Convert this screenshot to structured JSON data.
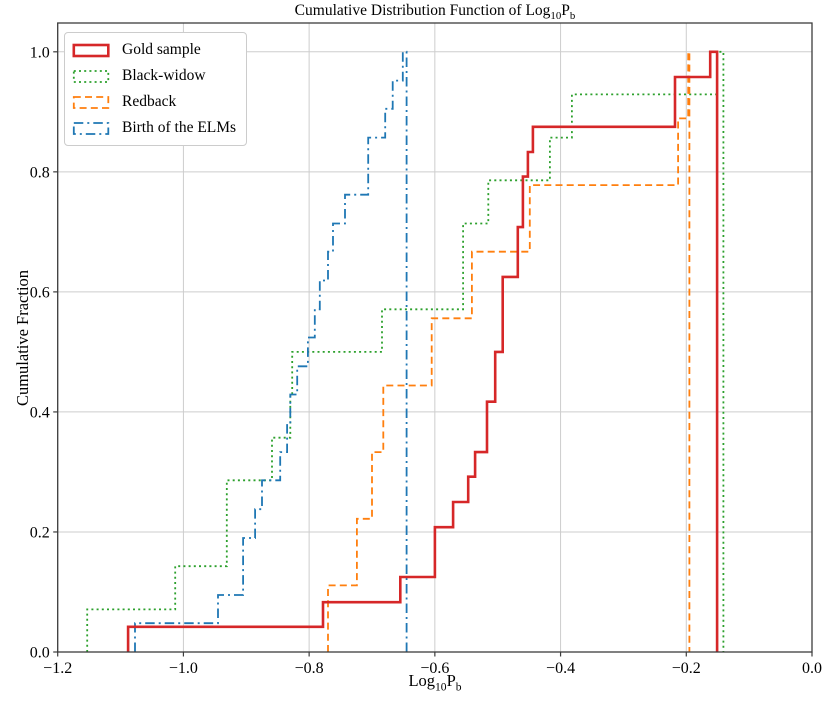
{
  "chart_data": {
    "type": "line",
    "subtype": "step-cdf",
    "title": {
      "prefix": "Cumulative Distribution Function of Log",
      "sub1": "10",
      "mid": "P",
      "sub2": "b"
    },
    "xlabel": {
      "prefix": "Log",
      "sub1": "10",
      "mid": "P",
      "sub2": "b"
    },
    "ylabel": "Cumulative Fraction",
    "xlim": [
      -1.2,
      0.0
    ],
    "ylim": [
      0,
      1.048
    ],
    "xticks": {
      "values": [
        -1.2,
        -1.0,
        -0.8,
        -0.6,
        -0.4,
        -0.2,
        0.0
      ],
      "labels": [
        "−1.2",
        "−1.0",
        "−0.8",
        "−0.6",
        "−0.4",
        "−0.2",
        "0.0"
      ]
    },
    "yticks": {
      "values": [
        0.0,
        0.2,
        0.4,
        0.6,
        0.8,
        1.0
      ],
      "labels": [
        "0.0",
        "0.2",
        "0.4",
        "0.6",
        "0.8",
        "1.0"
      ]
    },
    "grid": true,
    "grid_color": "#cdcdcd",
    "spine_color": "#3c3c3c",
    "legend_position": "upper left",
    "draw_order": [
      1,
      2,
      3,
      0
    ],
    "series": [
      {
        "name": "Gold sample",
        "color": "#d62728",
        "style": "solid",
        "linewidth": 2.6,
        "n": 24,
        "steps": [
          [
            -1.088,
            0.042
          ],
          [
            -0.778,
            0.083
          ],
          [
            -0.655,
            0.125
          ],
          [
            -0.6,
            0.208
          ],
          [
            -0.571,
            0.25
          ],
          [
            -0.547,
            0.292
          ],
          [
            -0.536,
            0.333
          ],
          [
            -0.517,
            0.417
          ],
          [
            -0.504,
            0.5
          ],
          [
            -0.492,
            0.625
          ],
          [
            -0.468,
            0.708
          ],
          [
            -0.46,
            0.792
          ],
          [
            -0.452,
            0.833
          ],
          [
            -0.444,
            0.875
          ],
          [
            -0.218,
            0.958
          ],
          [
            -0.162,
            1.0
          ]
        ],
        "close_x": -0.151
      },
      {
        "name": "Black-widow",
        "color": "#2ca02c",
        "style": "dotted",
        "linewidth": 1.8,
        "n": 14,
        "steps": [
          [
            -1.153,
            0.071
          ],
          [
            -1.013,
            0.143
          ],
          [
            -0.931,
            0.286
          ],
          [
            -0.859,
            0.357
          ],
          [
            -0.83,
            0.429
          ],
          [
            -0.827,
            0.5
          ],
          [
            -0.684,
            0.571
          ],
          [
            -0.555,
            0.714
          ],
          [
            -0.515,
            0.786
          ],
          [
            -0.417,
            0.857
          ],
          [
            -0.382,
            0.929
          ],
          [
            -0.151,
            1.0
          ]
        ],
        "close_x": -0.141
      },
      {
        "name": "Redback",
        "color": "#ff7f0e",
        "style": "dashed",
        "linewidth": 1.8,
        "n": 9,
        "steps": [
          [
            -0.77,
            0.111
          ],
          [
            -0.724,
            0.222
          ],
          [
            -0.7,
            0.333
          ],
          [
            -0.682,
            0.444
          ],
          [
            -0.605,
            0.556
          ],
          [
            -0.541,
            0.667
          ],
          [
            -0.449,
            0.778
          ],
          [
            -0.213,
            0.889
          ],
          [
            -0.197,
            1.0
          ]
        ],
        "close_x": -0.195
      },
      {
        "name": "Birth of the ELMs",
        "color": "#1f77b4",
        "style": "dashdot",
        "linewidth": 1.8,
        "n": 21,
        "steps": [
          [
            -1.077,
            0.048
          ],
          [
            -0.945,
            0.095
          ],
          [
            -0.905,
            0.19
          ],
          [
            -0.886,
            0.238
          ],
          [
            -0.875,
            0.286
          ],
          [
            -0.846,
            0.333
          ],
          [
            -0.835,
            0.381
          ],
          [
            -0.83,
            0.429
          ],
          [
            -0.819,
            0.476
          ],
          [
            -0.802,
            0.524
          ],
          [
            -0.791,
            0.571
          ],
          [
            -0.783,
            0.619
          ],
          [
            -0.77,
            0.667
          ],
          [
            -0.762,
            0.714
          ],
          [
            -0.743,
            0.762
          ],
          [
            -0.706,
            0.857
          ],
          [
            -0.679,
            0.905
          ],
          [
            -0.667,
            0.952
          ],
          [
            -0.651,
            1.0
          ]
        ],
        "close_x": -0.645
      }
    ]
  }
}
